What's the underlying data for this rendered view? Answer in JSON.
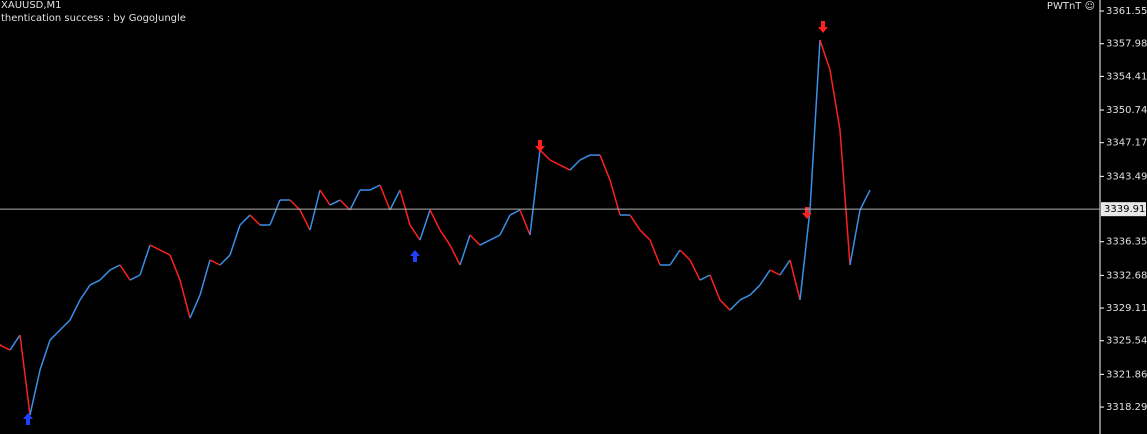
{
  "chart_data": {
    "type": "line",
    "symbol": "XAUUSD,M1",
    "status": "thentication success : by GogoJungle",
    "indicator": "PWTnT ☺",
    "values": [
      3325.07,
      3324.52,
      3326.16,
      3317.43,
      3322.34,
      3325.61,
      3326.71,
      3327.8,
      3329.99,
      3331.62,
      3332.17,
      3333.26,
      3333.81,
      3332.17,
      3332.72,
      3335.99,
      3335.45,
      3334.9,
      3332.17,
      3328.02,
      3330.53,
      3334.36,
      3333.81,
      3334.9,
      3338.18,
      3339.27,
      3338.18,
      3338.18,
      3340.91,
      3340.91,
      3339.82,
      3337.63,
      3342.0,
      3340.36,
      3340.91,
      3339.82,
      3342.0,
      3342.0,
      3342.55,
      3339.82,
      3342.0,
      3338.18,
      3336.54,
      3339.82,
      3337.63,
      3335.99,
      3333.81,
      3337.09,
      3335.99,
      3336.54,
      3337.09,
      3339.27,
      3339.82,
      3337.09,
      3346.37,
      3345.28,
      3344.73,
      3344.18,
      3345.28,
      3345.82,
      3345.82,
      3343.09,
      3339.27,
      3339.27,
      3337.63,
      3336.54,
      3333.81,
      3333.81,
      3335.45,
      3334.36,
      3332.17,
      3332.72,
      3329.99,
      3328.89,
      3329.99,
      3330.53,
      3331.62,
      3333.26,
      3332.72,
      3334.36,
      3329.99,
      3339.82,
      3358.39,
      3355.11,
      3348.55,
      3333.81,
      3339.82,
      3342.0
    ],
    "up_color": "#3a8fe8",
    "down_color": "#ff2020",
    "ylim": [
      3315.35,
      3362.76
    ],
    "yticks": [
      3361.555,
      3357.985,
      3354.415,
      {
        "value": 3350.74,
        "label": "3350.740"
      },
      {
        "value": 3347.17,
        "label": "3347.170"
      },
      3343.495,
      3336.355,
      {
        "value": 3332.68,
        "label": "3332.680"
      },
      {
        "value": 3329.11,
        "label": "3329.110"
      },
      {
        "value": 3325.54,
        "label": "3325.540"
      },
      3321.865,
      3318.295
    ],
    "current_price": 3339.911
  }
}
